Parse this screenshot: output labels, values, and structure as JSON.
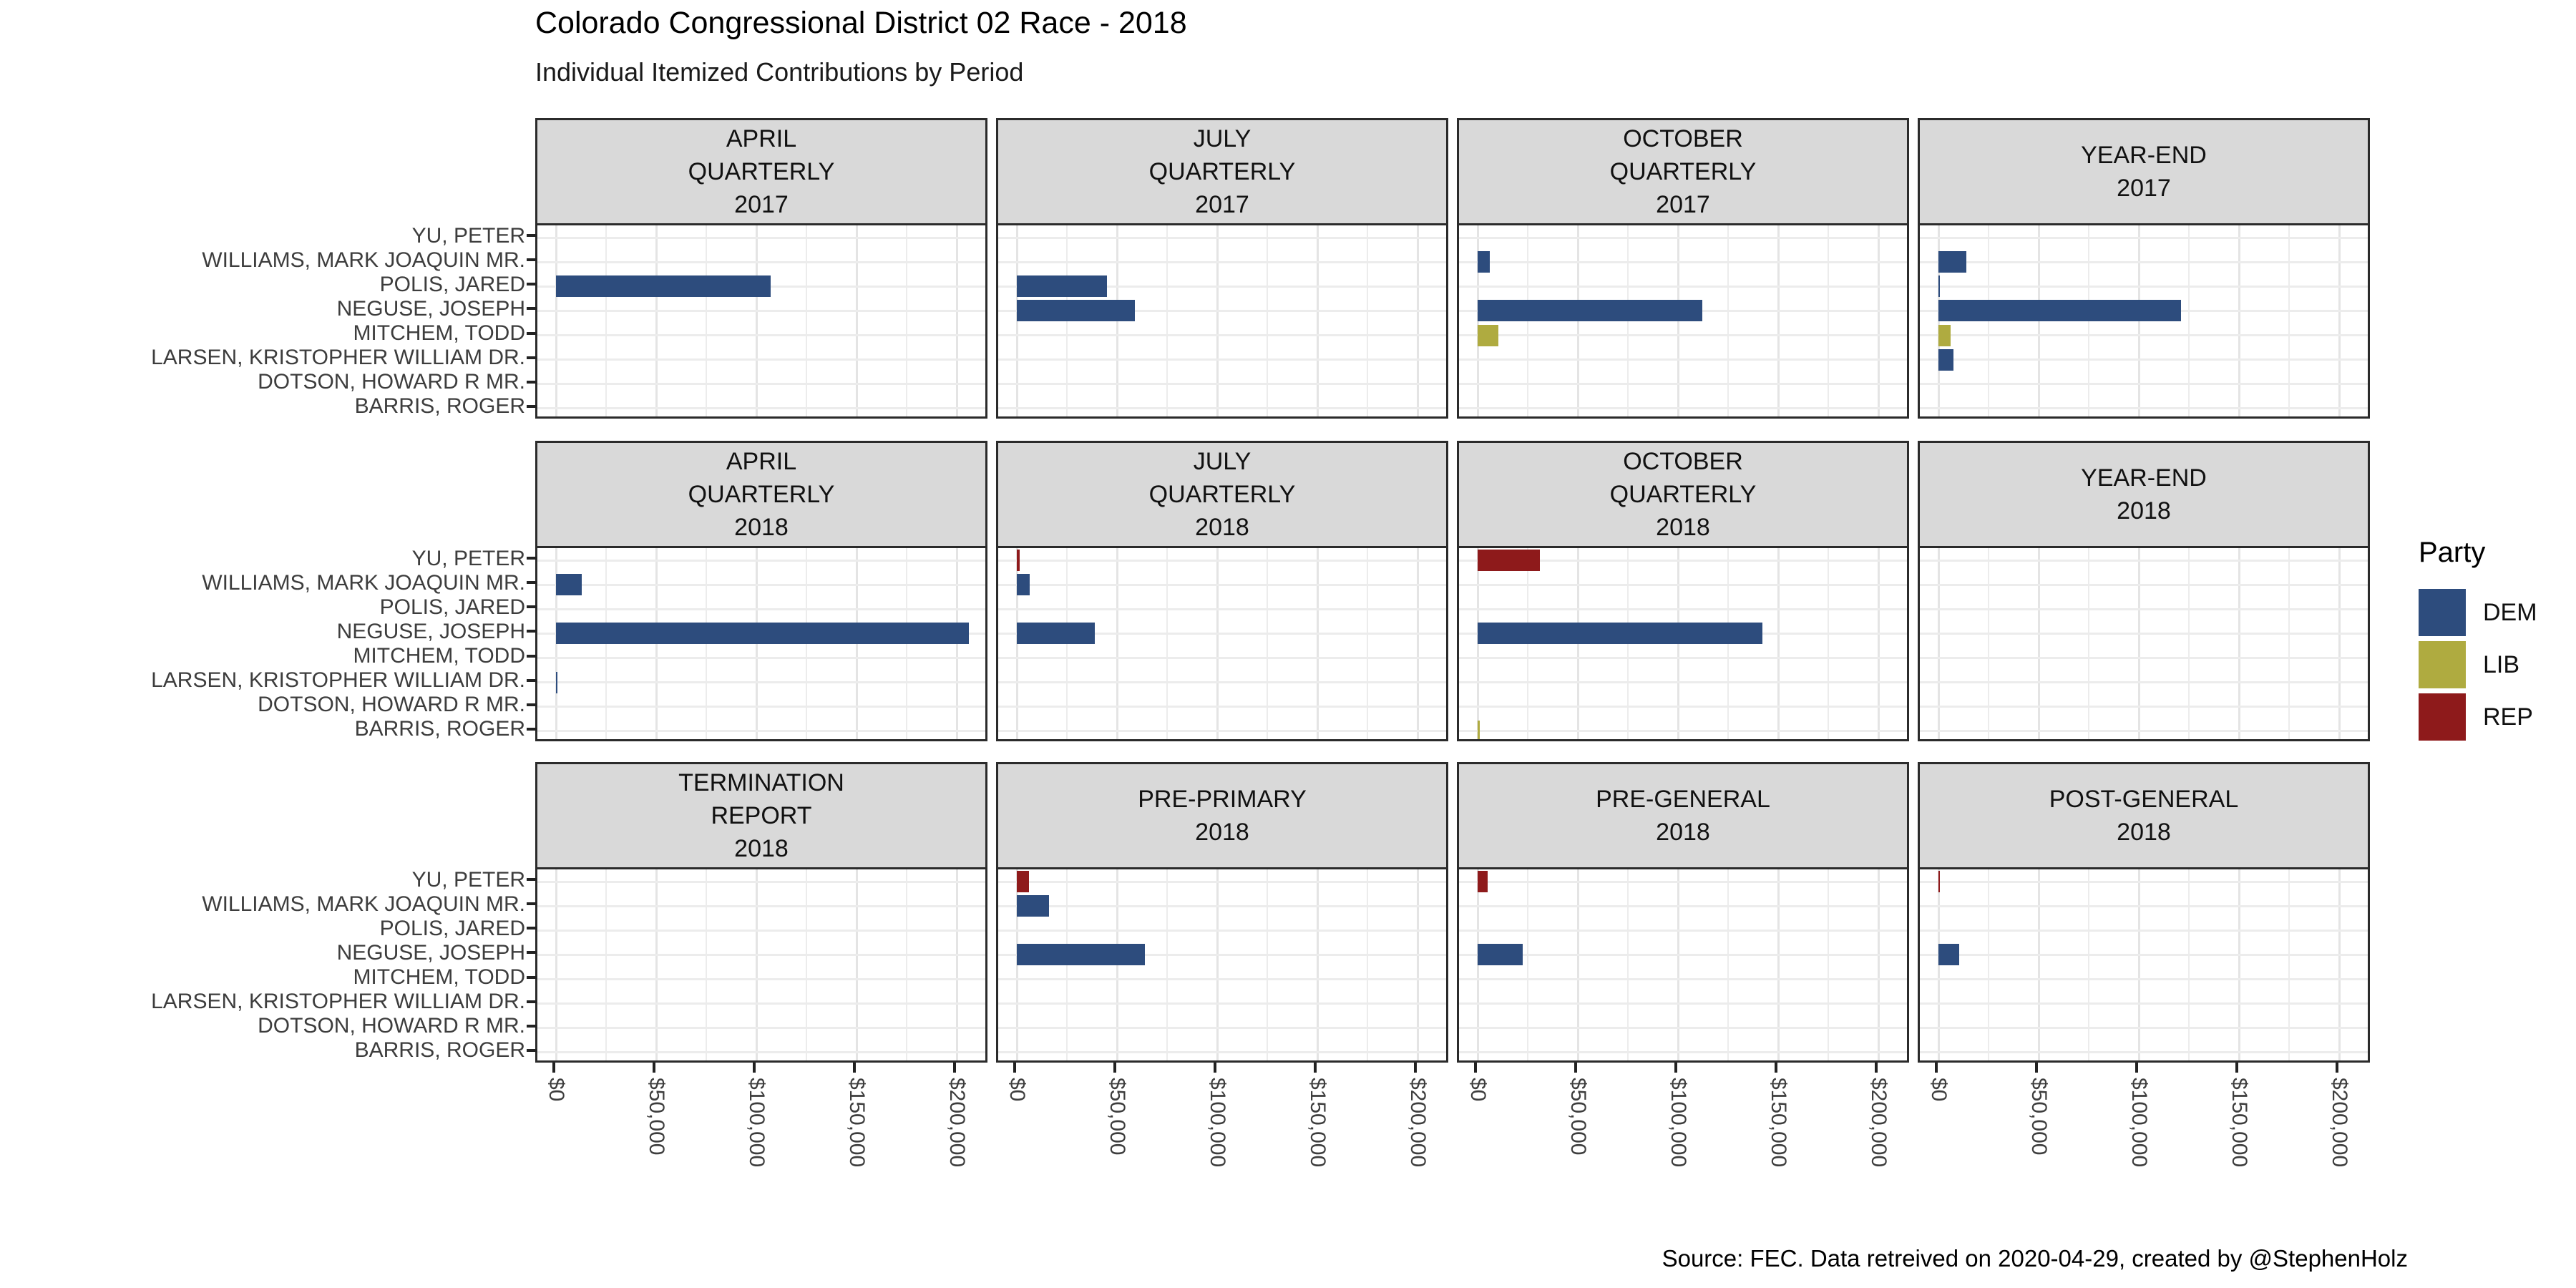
{
  "page": {
    "title": "Colorado Congressional District 02 Race - 2018",
    "subtitle": "Individual Itemized Contributions by Period",
    "source_note": "Source: FEC. Data retreived on 2020-04-29, created by @StephenHolz"
  },
  "legend": {
    "title": "Party",
    "entries": [
      {
        "label": "DEM",
        "color": "#2D4C7D"
      },
      {
        "label": "LIB",
        "color": "#AFAB40"
      },
      {
        "label": "REP",
        "color": "#8E1A1B"
      }
    ]
  },
  "chart_data": {
    "type": "bar",
    "orientation": "horizontal",
    "title": "Colorado Congressional District 02 Race - 2018",
    "subtitle": "Individual Itemized Contributions by Period",
    "facet_grid": {
      "rows": 3,
      "cols": 4
    },
    "grid": "on",
    "legend_position": "right",
    "candidates": [
      "YU, PETER",
      "WILLIAMS, MARK JOAQUIN MR.",
      "POLIS, JARED",
      "NEGUSE, JOSEPH",
      "MITCHEM, TODD",
      "LARSEN, KRISTOPHER WILLIAM DR.",
      "DOTSON, HOWARD R MR.",
      "BARRIS, ROGER"
    ],
    "party_colors": {
      "DEM": "#2D4C7D",
      "LIB": "#AFAB40",
      "REP": "#8E1A1B"
    },
    "x_axis": {
      "tick_labels": [
        "$0",
        "$50,000",
        "$100,000",
        "$150,000",
        "$200,000"
      ],
      "tick_values": [
        0,
        50000,
        100000,
        150000,
        200000
      ],
      "minor_step": 25000,
      "range": [
        0,
        215000
      ],
      "unit": "USD"
    },
    "facets": [
      {
        "period": "APRIL QUARTERLY 2017",
        "label_lines": [
          "APRIL",
          "QUARTERLY",
          "2017"
        ],
        "bars": [
          {
            "candidate": "POLIS, JARED",
            "party": "DEM",
            "value": 107000
          }
        ]
      },
      {
        "period": "JULY QUARTERLY 2017",
        "label_lines": [
          "JULY",
          "QUARTERLY",
          "2017"
        ],
        "bars": [
          {
            "candidate": "POLIS, JARED",
            "party": "DEM",
            "value": 45000
          },
          {
            "candidate": "NEGUSE, JOSEPH",
            "party": "DEM",
            "value": 59000
          }
        ]
      },
      {
        "period": "OCTOBER QUARTERLY 2017",
        "label_lines": [
          "OCTOBER",
          "QUARTERLY",
          "2017"
        ],
        "bars": [
          {
            "candidate": "WILLIAMS, MARK JOAQUIN MR.",
            "party": "DEM",
            "value": 6000
          },
          {
            "candidate": "NEGUSE, JOSEPH",
            "party": "DEM",
            "value": 112000
          },
          {
            "candidate": "MITCHEM, TODD",
            "party": "LIB",
            "value": 10500
          }
        ]
      },
      {
        "period": "YEAR-END 2017",
        "label_lines": [
          "YEAR-END",
          "2017"
        ],
        "bars": [
          {
            "candidate": "WILLIAMS, MARK JOAQUIN MR.",
            "party": "DEM",
            "value": 14000
          },
          {
            "candidate": "POLIS, JARED",
            "party": "DEM",
            "value": 500
          },
          {
            "candidate": "NEGUSE, JOSEPH",
            "party": "DEM",
            "value": 121000
          },
          {
            "candidate": "MITCHEM, TODD",
            "party": "LIB",
            "value": 6000
          },
          {
            "candidate": "LARSEN, KRISTOPHER WILLIAM DR.",
            "party": "DEM",
            "value": 7500
          }
        ]
      },
      {
        "period": "APRIL QUARTERLY 2018",
        "label_lines": [
          "APRIL",
          "QUARTERLY",
          "2018"
        ],
        "bars": [
          {
            "candidate": "WILLIAMS, MARK JOAQUIN MR.",
            "party": "DEM",
            "value": 13000
          },
          {
            "candidate": "NEGUSE, JOSEPH",
            "party": "DEM",
            "value": 206000
          },
          {
            "candidate": "LARSEN, KRISTOPHER WILLIAM DR.",
            "party": "DEM",
            "value": 400
          }
        ]
      },
      {
        "period": "JULY QUARTERLY 2018",
        "label_lines": [
          "JULY",
          "QUARTERLY",
          "2018"
        ],
        "bars": [
          {
            "candidate": "YU, PETER",
            "party": "REP",
            "value": 1500
          },
          {
            "candidate": "WILLIAMS, MARK JOAQUIN MR.",
            "party": "DEM",
            "value": 6500
          },
          {
            "candidate": "NEGUSE, JOSEPH",
            "party": "DEM",
            "value": 39000
          }
        ]
      },
      {
        "period": "OCTOBER QUARTERLY 2018",
        "label_lines": [
          "OCTOBER",
          "QUARTERLY",
          "2018"
        ],
        "bars": [
          {
            "candidate": "YU, PETER",
            "party": "REP",
            "value": 31000
          },
          {
            "candidate": "NEGUSE, JOSEPH",
            "party": "DEM",
            "value": 142000
          },
          {
            "candidate": "BARRIS, ROGER",
            "party": "LIB",
            "value": 1000
          }
        ]
      },
      {
        "period": "YEAR-END 2018",
        "label_lines": [
          "YEAR-END",
          "2018"
        ],
        "bars": []
      },
      {
        "period": "TERMINATION REPORT 2018",
        "label_lines": [
          "TERMINATION",
          "REPORT",
          "2018"
        ],
        "bars": []
      },
      {
        "period": "PRE-PRIMARY 2018",
        "label_lines": [
          "PRE-PRIMARY",
          "2018"
        ],
        "bars": [
          {
            "candidate": "YU, PETER",
            "party": "REP",
            "value": 6000
          },
          {
            "candidate": "WILLIAMS, MARK JOAQUIN MR.",
            "party": "DEM",
            "value": 16000
          },
          {
            "candidate": "NEGUSE, JOSEPH",
            "party": "DEM",
            "value": 64000
          }
        ]
      },
      {
        "period": "PRE-GENERAL 2018",
        "label_lines": [
          "PRE-GENERAL",
          "2018"
        ],
        "bars": [
          {
            "candidate": "YU, PETER",
            "party": "REP",
            "value": 5000
          },
          {
            "candidate": "NEGUSE, JOSEPH",
            "party": "DEM",
            "value": 22500
          }
        ]
      },
      {
        "period": "POST-GENERAL 2018",
        "label_lines": [
          "POST-GENERAL",
          "2018"
        ],
        "bars": [
          {
            "candidate": "YU, PETER",
            "party": "REP",
            "value": 300
          },
          {
            "candidate": "NEGUSE, JOSEPH",
            "party": "DEM",
            "value": 10500
          }
        ]
      }
    ]
  }
}
